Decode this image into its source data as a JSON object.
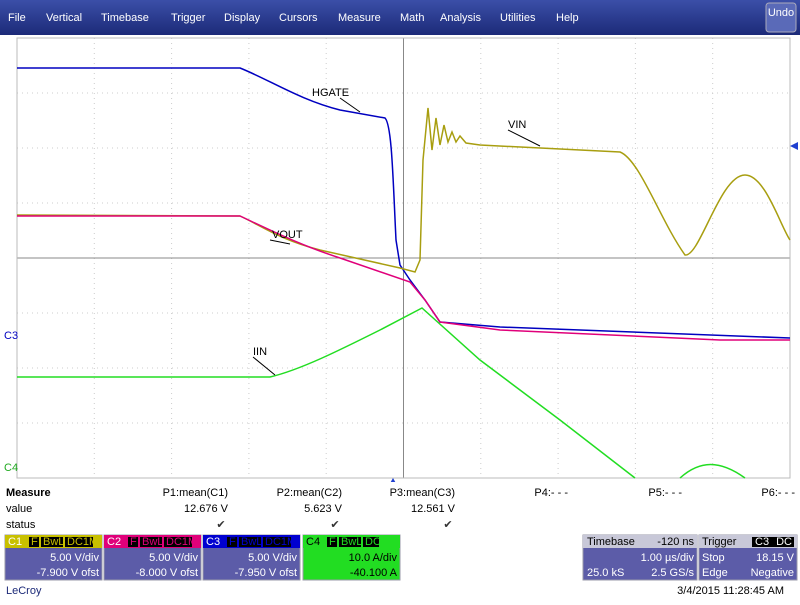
{
  "menu": [
    "File",
    "Vertical",
    "Timebase",
    "Trigger",
    "Display",
    "Cursors",
    "Measure",
    "Math",
    "Analysis",
    "Utilities",
    "Help"
  ],
  "undo": "Undo",
  "trace_labels": {
    "hgate": "HGATE",
    "vin": "VIN",
    "vout": "VOUT",
    "iin": "IIN"
  },
  "channel_markers": [
    "C3",
    "C4"
  ],
  "measure": {
    "title": "Measure",
    "row_labels": [
      "value",
      "status"
    ],
    "params": [
      {
        "name": "P1:mean(C1)",
        "value": "12.676 V",
        "status": "✔"
      },
      {
        "name": "P2:mean(C2)",
        "value": "5.623 V",
        "status": "✔"
      },
      {
        "name": "P3:mean(C3)",
        "value": "12.561 V",
        "status": "✔"
      },
      {
        "name": "P4:- - -"
      },
      {
        "name": "P5:- - -"
      },
      {
        "name": "P6:- - -"
      }
    ]
  },
  "channels": [
    {
      "name": "C1",
      "flags": [
        "F",
        "BwL",
        "DC1M"
      ],
      "scale": "5.00 V/div",
      "offset": "-7.900 V ofst"
    },
    {
      "name": "C2",
      "flags": [
        "F",
        "BwL",
        "DC1M"
      ],
      "scale": "5.00 V/div",
      "offset": "-8.000 V ofst"
    },
    {
      "name": "C3",
      "flags": [
        "F",
        "BwL",
        "DC1M"
      ],
      "scale": "5.00 V/div",
      "offset": "-7.950 V ofst"
    },
    {
      "name": "C4",
      "flags": [
        "F",
        "BwL",
        "DC"
      ],
      "scale": "10.0 A/div",
      "offset": "-40.100 A"
    }
  ],
  "timebase": {
    "label": "Timebase",
    "delay": "-120 ns",
    "scale": "1.00 µs/div",
    "samples": "25.0 kS",
    "rate": "2.5 GS/s"
  },
  "trigger": {
    "label": "Trigger",
    "source": "C3",
    "coupling": "DC",
    "mode": "Stop",
    "level": "18.15 V",
    "type": "Edge",
    "slope": "Negative"
  },
  "footer": {
    "brand": "LeCroy",
    "timestamp": "3/4/2015 11:28:45 AM"
  }
}
